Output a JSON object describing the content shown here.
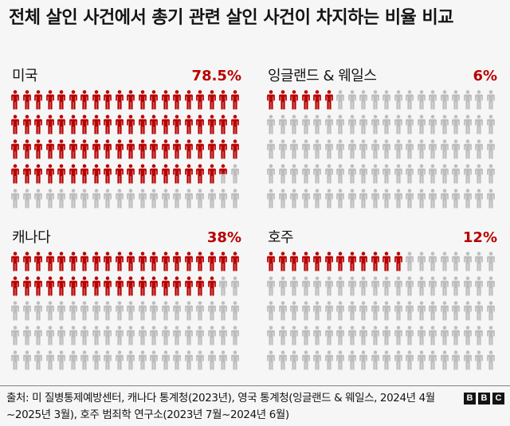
{
  "title": "전체 살인 사건에서 총기 관련 살인 사건이 차지하는 비율 비교",
  "colors": {
    "highlight": "#b80000",
    "rest": "#bdbdbd",
    "background": "#f6f6f6"
  },
  "panels": [
    {
      "label": "미국",
      "percent_label": "78.5%",
      "value": 78.5
    },
    {
      "label": "잉글랜드 & 웨일스",
      "percent_label": "6%",
      "value": 6
    },
    {
      "label": "캐나다",
      "percent_label": "38%",
      "value": 38
    },
    {
      "label": "호주",
      "percent_label": "12%",
      "value": 12
    }
  ],
  "footer": {
    "source": "출처: 미 질병통제예방센터, 캐나다 통계청(2023년), 영국 통계청(잉글랜드 & 웨일스, 2024년 4월~2025년 3월), 호주 범죄학 연구소(2023년 7월~2024년 6월)",
    "logo": [
      "B",
      "B",
      "C"
    ]
  },
  "chart_data": {
    "type": "pictogram",
    "title": "전체 살인 사건에서 총기 관련 살인 사건이 차지하는 비율 비교",
    "units_per_panel": 100,
    "grid": {
      "rows": 5,
      "cols": 20
    },
    "categories": [
      "미국",
      "잉글랜드 & 웨일스",
      "캐나다",
      "호주"
    ],
    "values": [
      78.5,
      6,
      38,
      12
    ],
    "value_unit": "%",
    "xlabel": "",
    "ylabel": "",
    "legend": null,
    "source": "출처: 미 질병통제예방센터, 캐나다 통계청(2023년), 영국 통계청(잉글랜드 & 웨일스, 2024년 4월~2025년 3월), 호주 범죄학 연구소(2023년 7월~2024년 6월)"
  }
}
